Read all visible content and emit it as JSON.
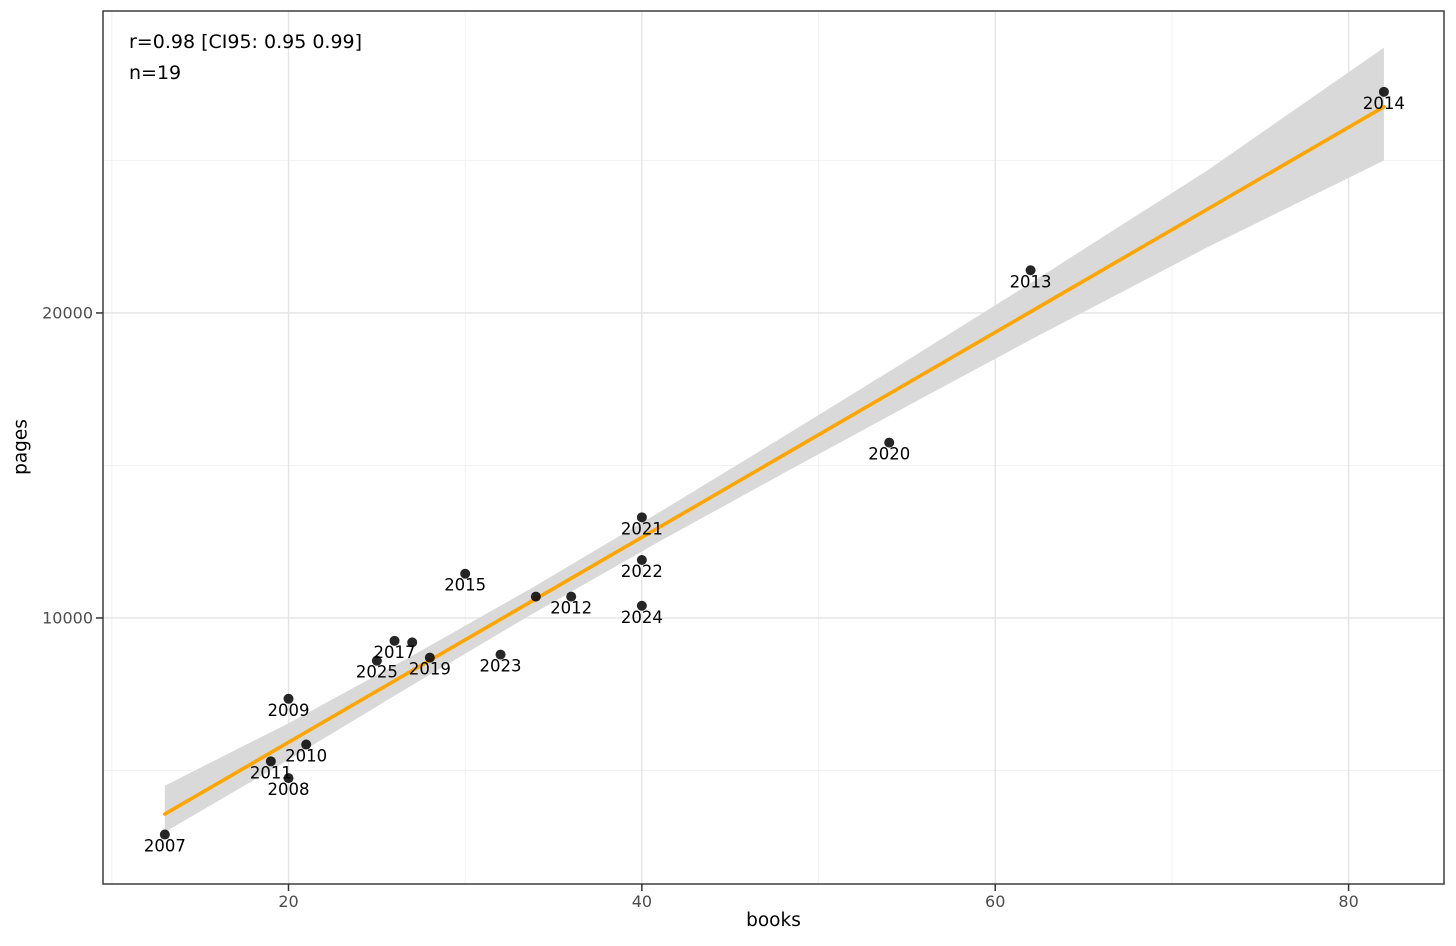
{
  "annotation": {
    "line1": "r=0.98 [CI95: 0.95 0.99]",
    "line2": "n=19"
  },
  "axes": {
    "x": {
      "label": "books",
      "tick_labels": [
        "20",
        "40",
        "60",
        "80"
      ]
    },
    "y": {
      "label": "pages",
      "tick_labels": [
        "10000",
        "20000"
      ]
    }
  },
  "chart_data": {
    "type": "scatter",
    "title": "",
    "xlabel": "books",
    "ylabel": "pages",
    "stats_annotation": "r=0.98 [CI95: 0.95 0.99]\nn=19",
    "n": 19,
    "r": 0.98,
    "r_ci95": [
      0.95,
      0.99
    ],
    "x_domain": [
      9.5,
      85.4
    ],
    "y_domain": [
      1278,
      29900
    ],
    "x_major_ticks": [
      20,
      40,
      60,
      80
    ],
    "x_minor_ticks": [
      10,
      30,
      50,
      70
    ],
    "y_major_ticks": [
      10000,
      20000
    ],
    "y_minor_ticks": [
      5000,
      15000,
      25000
    ],
    "grid": true,
    "legend": false,
    "points": [
      {
        "label": "2007",
        "books": 13,
        "pages": 2900
      },
      {
        "label": "2008",
        "books": 20,
        "pages": 4750
      },
      {
        "label": "2009",
        "books": 20,
        "pages": 7350
      },
      {
        "label": "2010",
        "books": 21,
        "pages": 5850
      },
      {
        "label": "2011",
        "books": 19,
        "pages": 5300
      },
      {
        "label": "2012",
        "books": 36,
        "pages": 10700
      },
      {
        "label": "2013",
        "books": 62,
        "pages": 21400
      },
      {
        "label": "2014",
        "books": 82,
        "pages": 27250
      },
      {
        "label": "2015",
        "books": 30,
        "pages": 11450
      },
      {
        "label": "",
        "books": 34,
        "pages": 10700
      },
      {
        "label": "2017",
        "books": 26,
        "pages": 9250
      },
      {
        "label": "",
        "books": 27,
        "pages": 9200
      },
      {
        "label": "2019",
        "books": 28,
        "pages": 8700
      },
      {
        "label": "2020",
        "books": 54,
        "pages": 15750
      },
      {
        "label": "2021",
        "books": 40,
        "pages": 13300
      },
      {
        "label": "2022",
        "books": 40,
        "pages": 11900
      },
      {
        "label": "2023",
        "books": 32,
        "pages": 8800
      },
      {
        "label": "2024",
        "books": 40,
        "pages": 10400
      },
      {
        "label": "2025",
        "books": 25,
        "pages": 8600
      }
    ],
    "regression_line": {
      "x": [
        13,
        82
      ],
      "y": [
        3570,
        26760
      ],
      "color": "#FFA500",
      "width": 3.6
    },
    "ci_band": {
      "x": [
        13,
        20,
        27,
        34,
        41,
        48,
        55,
        62,
        72,
        82
      ],
      "lower": [
        2980,
        5350,
        7800,
        10200,
        12510,
        14740,
        16940,
        19120,
        22150,
        25000
      ],
      "upper": [
        4500,
        6550,
        8760,
        11060,
        13470,
        15940,
        18440,
        20980,
        24670,
        28700
      ],
      "color": "#D9D9D9"
    },
    "colors": {
      "point": "#000000",
      "point_opacity": 0.85,
      "label_text": "#000000",
      "grid_major": "#E4E4E4",
      "grid_minor": "#F0F0F0",
      "panel_border": "#3d3d3d",
      "tick_mark": "#333333",
      "tick_text": "#4d4d4d",
      "background": "#ffffff"
    }
  }
}
